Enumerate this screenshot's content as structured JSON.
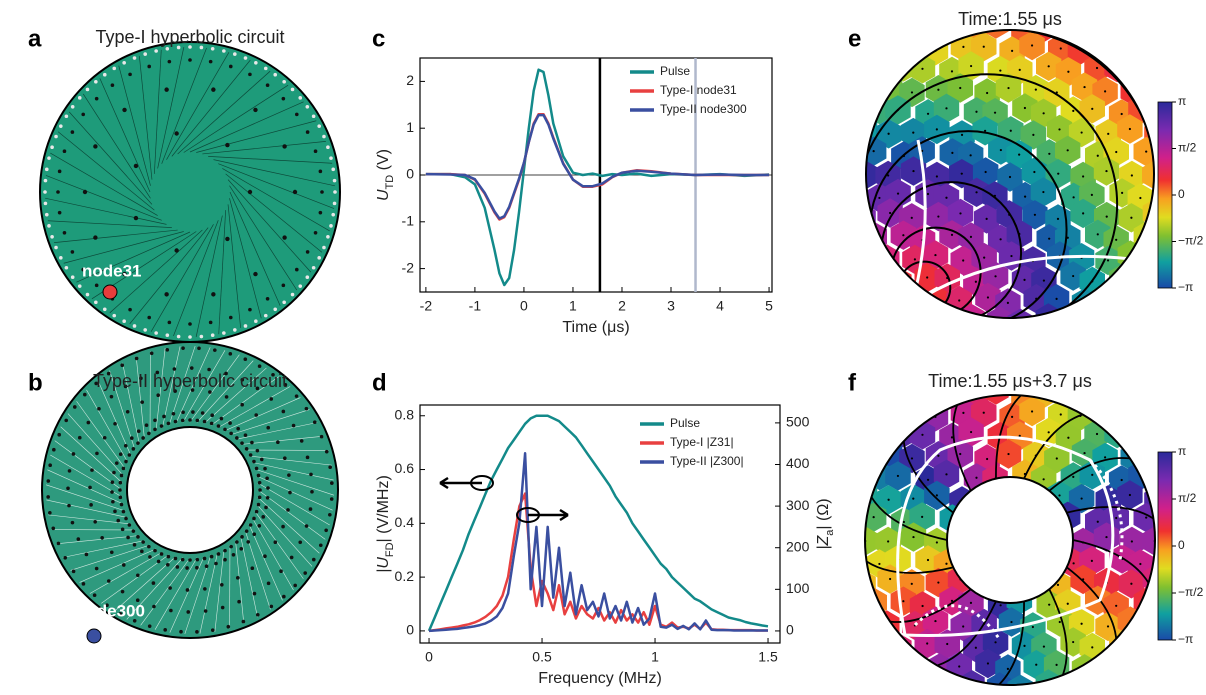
{
  "panel_a": {
    "label": "a",
    "title": "Type-I hyperbolic circuit",
    "node_label": "node31"
  },
  "panel_b": {
    "label": "b",
    "title": "Type-II hyperbolic circuit",
    "node_label": "node300"
  },
  "chart_data": [
    {
      "type": "line",
      "label": "c",
      "xlabel": "Time (μs)",
      "ylabel": "U",
      "ylabel_sub": "TD",
      "ylabel_unit": " (V)",
      "x": [
        -2,
        -1.5,
        -1.2,
        -1,
        -0.8,
        -0.6,
        -0.5,
        -0.4,
        -0.3,
        -0.2,
        -0.1,
        0,
        0.1,
        0.2,
        0.3,
        0.4,
        0.5,
        0.6,
        0.8,
        1,
        1.2,
        1.4,
        1.6,
        1.8,
        2,
        2.3,
        2.6,
        3,
        3.5,
        4,
        4.5,
        5
      ],
      "series": [
        {
          "name": "Pulse",
          "color": "#138a8a",
          "values": [
            0.02,
            0.02,
            -0.05,
            -0.2,
            -0.7,
            -1.6,
            -2.1,
            -2.35,
            -2.2,
            -1.6,
            -0.8,
            0.1,
            1.0,
            1.8,
            2.25,
            2.2,
            1.7,
            1.1,
            0.4,
            0.05,
            0,
            0.03,
            -0.02,
            0.02,
            0,
            0.03,
            -0.02,
            0.02,
            0,
            0.02,
            -0.02,
            0.01
          ]
        },
        {
          "name": "Type-I node31",
          "color": "#e84040",
          "values": [
            0.02,
            0.02,
            0,
            -0.1,
            -0.4,
            -0.8,
            -0.95,
            -0.9,
            -0.7,
            -0.4,
            -0.1,
            0.25,
            0.7,
            1.1,
            1.3,
            1.3,
            1.1,
            0.8,
            0.25,
            -0.1,
            -0.25,
            -0.25,
            -0.2,
            -0.05,
            0.05,
            0.1,
            0.08,
            0.03,
            0,
            0,
            0,
            0
          ]
        },
        {
          "name": "Type-II node300",
          "color": "#3a4fa0",
          "values": [
            0.02,
            0.01,
            0,
            -0.09,
            -0.38,
            -0.78,
            -0.93,
            -0.88,
            -0.68,
            -0.38,
            -0.08,
            0.26,
            0.7,
            1.08,
            1.28,
            1.28,
            1.08,
            0.78,
            0.24,
            -0.1,
            -0.24,
            -0.24,
            -0.18,
            -0.04,
            0.05,
            0.09,
            0.07,
            0.03,
            0,
            0.01,
            0,
            0
          ]
        }
      ],
      "xlim": [
        -2.12,
        5.06
      ],
      "ylim": [
        -2.5,
        2.5
      ],
      "xticks": [
        -2,
        -1,
        0,
        1,
        2,
        3,
        4,
        5
      ],
      "yticks": [
        -2,
        -1,
        0,
        1,
        2
      ],
      "vlines": [
        {
          "value": 1.55,
          "color": "#000000"
        },
        {
          "value": 3.5,
          "color": "#b0b8cc"
        }
      ],
      "zero_line": true,
      "legend": "upper right"
    },
    {
      "type": "line",
      "label": "d",
      "xlabel": "Frequency (MHz)",
      "ylabel": "|U",
      "ylabel_sub": "FD",
      "ylabel_unit": "| (V/MHz)",
      "y2label": "|Z",
      "y2label_sub": "a",
      "y2label_unit": "| (Ω)",
      "x": [
        0,
        0.025,
        0.05,
        0.075,
        0.1,
        0.125,
        0.15,
        0.175,
        0.2,
        0.225,
        0.25,
        0.275,
        0.3,
        0.325,
        0.35,
        0.375,
        0.4,
        0.425,
        0.45,
        0.475,
        0.5,
        0.525,
        0.55,
        0.575,
        0.6,
        0.625,
        0.65,
        0.675,
        0.7,
        0.725,
        0.75,
        0.775,
        0.8,
        0.825,
        0.85,
        0.875,
        0.9,
        0.925,
        0.95,
        0.975,
        1,
        1.025,
        1.05,
        1.075,
        1.1,
        1.125,
        1.15,
        1.175,
        1.2,
        1.225,
        1.25,
        1.275,
        1.3,
        1.325,
        1.35,
        1.375,
        1.4,
        1.425,
        1.45,
        1.475,
        1.5
      ],
      "series": [
        {
          "name": "Pulse",
          "color": "#138a8a",
          "values": [
            0,
            0.05,
            0.1,
            0.15,
            0.2,
            0.25,
            0.3,
            0.36,
            0.41,
            0.46,
            0.51,
            0.56,
            0.6,
            0.64,
            0.68,
            0.71,
            0.74,
            0.77,
            0.79,
            0.8,
            0.8,
            0.8,
            0.79,
            0.78,
            0.76,
            0.74,
            0.72,
            0.69,
            0.66,
            0.63,
            0.6,
            0.57,
            0.54,
            0.5,
            0.47,
            0.44,
            0.4,
            0.37,
            0.34,
            0.31,
            0.28,
            0.25,
            0.23,
            0.2,
            0.18,
            0.16,
            0.14,
            0.12,
            0.11,
            0.095,
            0.08,
            0.07,
            0.06,
            0.05,
            0.045,
            0.04,
            0.033,
            0.028,
            0.024,
            0.02,
            0.017
          ]
        },
        {
          "name": "Type-I |Z31|",
          "color": "#e84040",
          "axis": "y2",
          "values": [
            0,
            2,
            4,
            6,
            8,
            10,
            13,
            16,
            20,
            26,
            34,
            45,
            60,
            85,
            130,
            220,
            300,
            330,
            150,
            60,
            120,
            90,
            50,
            110,
            40,
            70,
            30,
            60,
            40,
            30,
            55,
            25,
            45,
            20,
            50,
            25,
            40,
            20,
            45,
            15,
            60,
            15,
            10,
            20,
            8,
            10,
            6,
            15,
            5,
            20,
            4,
            3,
            3,
            2,
            2,
            2,
            2,
            2,
            1,
            1,
            1
          ]
        },
        {
          "name": "Type-II |Z300|",
          "color": "#3a4fa0",
          "axis": "y2",
          "values": [
            0,
            1,
            2,
            3,
            4,
            5,
            7,
            9,
            11,
            14,
            18,
            25,
            35,
            55,
            90,
            180,
            260,
            427,
            100,
            250,
            60,
            250,
            80,
            200,
            60,
            140,
            40,
            110,
            50,
            70,
            35,
            90,
            30,
            60,
            25,
            70,
            20,
            55,
            15,
            30,
            90,
            10,
            8,
            15,
            5,
            12,
            4,
            18,
            4,
            25,
            3,
            2,
            2,
            2,
            1,
            1,
            1,
            1,
            1,
            1,
            1
          ]
        }
      ],
      "xlim": [
        -0.04,
        1.553
      ],
      "ylim": [
        -0.045,
        0.84
      ],
      "y2lim": [
        -29,
        543
      ],
      "xticks": [
        0,
        0.5,
        1,
        1.5
      ],
      "yticks": [
        0,
        0.2,
        0.4,
        0.6,
        0.8
      ],
      "y2ticks": [
        0,
        100,
        200,
        300,
        400,
        500
      ],
      "legend": "upper right"
    }
  ],
  "panel_e": {
    "label": "e",
    "title": "Time:1.55 μs",
    "colorbar_lim": [
      -3.1416,
      3.1416
    ],
    "colorbar_ticks": [
      {
        "value": 3.1416,
        "label": "π"
      },
      {
        "value": 1.5708,
        "label": "π/2"
      },
      0,
      {
        "value": -1.5708,
        "label": "−π/2"
      },
      {
        "value": -3.1416,
        "label": "−π"
      }
    ]
  },
  "panel_f": {
    "label": "f",
    "title": "Time:1.55 μs+3.7 μs",
    "colorbar_lim": [
      -3.1416,
      3.1416
    ],
    "colorbar_ticks": [
      {
        "value": 3.1416,
        "label": "π"
      },
      {
        "value": 1.5708,
        "label": "π/2"
      },
      0,
      {
        "value": -1.5708,
        "label": "−π/2"
      },
      {
        "value": -3.1416,
        "label": "−π"
      }
    ]
  }
}
